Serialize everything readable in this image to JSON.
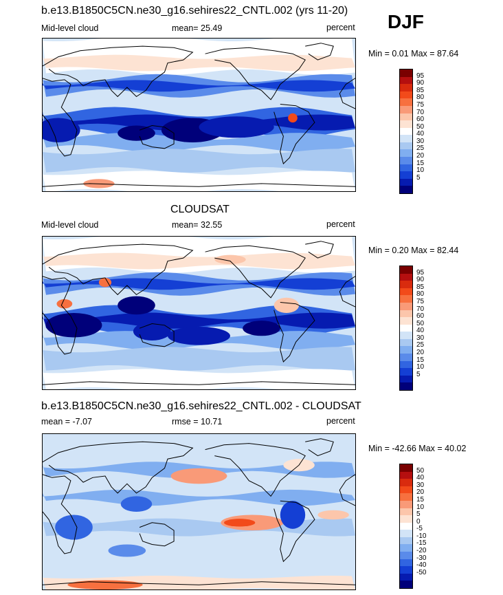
{
  "season": "DJF",
  "panels": [
    {
      "title": "b.e13.B1850C5CN.ne30_g16.sehires22_CNTL.002 (yrs 11-20)",
      "left_label": "Mid-level cloud",
      "center_label": "mean=  25.49",
      "units": "percent",
      "minmax": "Min =   0.01 Max =  87.64",
      "levels": [
        "95",
        "90",
        "85",
        "80",
        "75",
        "70",
        "60",
        "50",
        "40",
        "30",
        "25",
        "20",
        "15",
        "10",
        "5"
      ],
      "colors": [
        "#7a0000",
        "#b50f0f",
        "#d92b0e",
        "#f24a1a",
        "#f7703f",
        "#f99a78",
        "#fcc6ab",
        "#fde3d3",
        "#ffffff",
        "#d2e4f7",
        "#a9c9f1",
        "#80aef0",
        "#5a8bea",
        "#3165e1",
        "#143fd4",
        "#061bb0",
        "#00007a"
      ],
      "map_style": "model"
    },
    {
      "title": "CLOUDSAT",
      "left_label": "Mid-level cloud",
      "center_label": "mean=  32.55",
      "units": "percent",
      "minmax": "Min =   0.20 Max =  82.44",
      "levels": [
        "95",
        "90",
        "85",
        "80",
        "75",
        "70",
        "60",
        "50",
        "40",
        "30",
        "25",
        "20",
        "15",
        "10",
        "5"
      ],
      "colors": [
        "#7a0000",
        "#b50f0f",
        "#d92b0e",
        "#f24a1a",
        "#f7703f",
        "#f99a78",
        "#fcc6ab",
        "#fde3d3",
        "#ffffff",
        "#d2e4f7",
        "#a9c9f1",
        "#80aef0",
        "#5a8bea",
        "#3165e1",
        "#143fd4",
        "#061bb0",
        "#00007a"
      ],
      "map_style": "obs"
    },
    {
      "title": "b.e13.B1850C5CN.ne30_g16.sehires22_CNTL.002 - CLOUDSAT",
      "left_label": "mean =  -7.07",
      "center_label": "rmse =  10.71",
      "units": "percent",
      "minmax": "Min = -42.66 Max =  40.02",
      "levels": [
        "50",
        "40",
        "30",
        "20",
        "15",
        "10",
        "5",
        "0",
        "-5",
        "-10",
        "-15",
        "-20",
        "-30",
        "-40",
        "-50"
      ],
      "colors": [
        "#7a0000",
        "#b50f0f",
        "#d92b0e",
        "#f24a1a",
        "#f7703f",
        "#f99a78",
        "#fcc6ab",
        "#fde3d3",
        "#ffffff",
        "#d2e4f7",
        "#a9c9f1",
        "#80aef0",
        "#5a8bea",
        "#3165e1",
        "#143fd4",
        "#061bb0",
        "#00007a"
      ],
      "map_style": "diff"
    }
  ],
  "chart_data": [
    {
      "type": "heatmap",
      "title": "b.e13.B1850C5CN.ne30_g16.sehires22_CNTL.002 (yrs 11-20)",
      "variable": "Mid-level cloud",
      "units": "percent",
      "mean": 25.49,
      "min": 0.01,
      "max": 87.64,
      "contour_levels": [
        5,
        10,
        15,
        20,
        25,
        30,
        40,
        50,
        60,
        70,
        75,
        80,
        85,
        90,
        95
      ]
    },
    {
      "type": "heatmap",
      "title": "CLOUDSAT",
      "variable": "Mid-level cloud",
      "units": "percent",
      "mean": 32.55,
      "min": 0.2,
      "max": 82.44,
      "contour_levels": [
        5,
        10,
        15,
        20,
        25,
        30,
        40,
        50,
        60,
        70,
        75,
        80,
        85,
        90,
        95
      ]
    },
    {
      "type": "heatmap",
      "title": "b.e13.B1850C5CN.ne30_g16.sehires22_CNTL.002 - CLOUDSAT",
      "units": "percent",
      "mean": -7.07,
      "rmse": 10.71,
      "min": -42.66,
      "max": 40.02,
      "contour_levels": [
        -50,
        -40,
        -30,
        -20,
        -15,
        -10,
        -5,
        0,
        5,
        10,
        15,
        20,
        30,
        40,
        50
      ]
    }
  ]
}
